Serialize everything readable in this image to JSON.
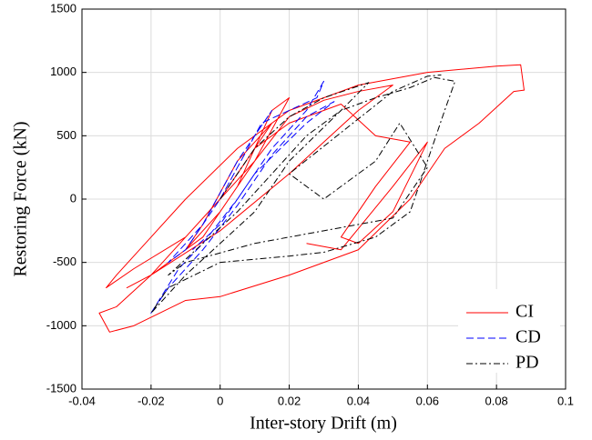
{
  "chart_data": {
    "type": "line",
    "xlabel": "Inter-story Drift (m)",
    "ylabel": "Restoring Force (kN)",
    "xlim": [
      -0.04,
      0.1
    ],
    "xticks": [
      -0.04,
      -0.02,
      0,
      0.02,
      0.04,
      0.06,
      0.08,
      0.1
    ],
    "ylim": [
      -1500,
      1500
    ],
    "yticks": [
      -1500,
      -1000,
      -500,
      0,
      500,
      1000,
      1500
    ],
    "grid": true,
    "legend": "lower right",
    "series": [
      {
        "name": "CI",
        "color": "#ff0000",
        "dash": "solid",
        "x": [
          0,
          0.01,
          0.015,
          0.005,
          -0.005,
          -0.01,
          -0.005,
          0.005,
          0.015,
          0.02,
          0.01,
          -0.01,
          -0.02,
          -0.027,
          -0.02,
          -0.01,
          0,
          0.01,
          0.02,
          0.03,
          0.04,
          0.05,
          0.04,
          0.02,
          0,
          -0.02,
          -0.03,
          -0.035,
          -0.032,
          -0.025,
          -0.01,
          0,
          0.02,
          0.04,
          0.055,
          0.065,
          0.075,
          0.085,
          0.088,
          0.087,
          0.08,
          0.06,
          0.04,
          0.02,
          0.005,
          -0.01,
          -0.02,
          -0.03,
          -0.033,
          -0.025,
          -0.01,
          0,
          0.01,
          0.02,
          0.035,
          0.045,
          0.055,
          0.045,
          0.035,
          0.04,
          0.05,
          0.06,
          0.05,
          0.035,
          0.025
        ],
        "values": [
          0,
          400,
          600,
          300,
          -200,
          -400,
          -300,
          100,
          700,
          800,
          300,
          -300,
          -600,
          -700,
          -600,
          -400,
          -100,
          300,
          650,
          780,
          850,
          900,
          700,
          200,
          -250,
          -600,
          -850,
          -900,
          -1050,
          -1000,
          -800,
          -770,
          -600,
          -400,
          0,
          400,
          600,
          850,
          860,
          1060,
          1050,
          1000,
          900,
          700,
          400,
          0,
          -300,
          -600,
          -700,
          -550,
          -300,
          0,
          400,
          600,
          750,
          500,
          450,
          100,
          -300,
          -350,
          -100,
          450,
          100,
          -400,
          -350
        ]
      },
      {
        "name": "CD",
        "color": "#0000ff",
        "dash": "dashed",
        "x": [
          0,
          0.01,
          0.015,
          0.005,
          -0.005,
          -0.015,
          -0.01,
          0,
          0.012,
          0.02,
          0.028,
          0.03,
          0.025,
          0.015,
          0.005,
          -0.005,
          -0.012,
          -0.02,
          -0.015,
          -0.005,
          0.005,
          0.015,
          0.025,
          0.033,
          0.025,
          0.01,
          0,
          -0.008
        ],
        "values": [
          0,
          500,
          700,
          300,
          -200,
          -500,
          -400,
          0,
          600,
          700,
          800,
          930,
          700,
          400,
          0,
          -350,
          -550,
          -900,
          -700,
          -400,
          -50,
          350,
          650,
          770,
          600,
          200,
          -200,
          -400
        ]
      },
      {
        "name": "PD",
        "color": "#000000",
        "dash": "dashdot",
        "x": [
          0,
          0.01,
          0.02,
          0.03,
          0.043,
          0.035,
          0.02,
          0.01,
          0,
          -0.01,
          -0.02,
          -0.015,
          0,
          0.02,
          0.03,
          0.045,
          0.055,
          0.06,
          0.065,
          0.068,
          0.062,
          0.055,
          0.045,
          0.035,
          0.025,
          0.015,
          0.005,
          -0.005,
          -0.015,
          -0.01,
          0.01,
          0.03,
          0.05,
          0.06,
          0.052,
          0.045,
          0.03,
          0.02,
          0.05,
          0.06,
          0.064
        ],
        "values": [
          0,
          400,
          650,
          800,
          920,
          700,
          300,
          -100,
          -350,
          -600,
          -900,
          -700,
          -500,
          -450,
          -420,
          -300,
          -100,
          300,
          700,
          930,
          960,
          880,
          800,
          700,
          500,
          200,
          -100,
          -350,
          -600,
          -500,
          -350,
          -250,
          -150,
          250,
          600,
          300,
          0,
          200,
          850,
          970,
          980
        ]
      }
    ]
  }
}
